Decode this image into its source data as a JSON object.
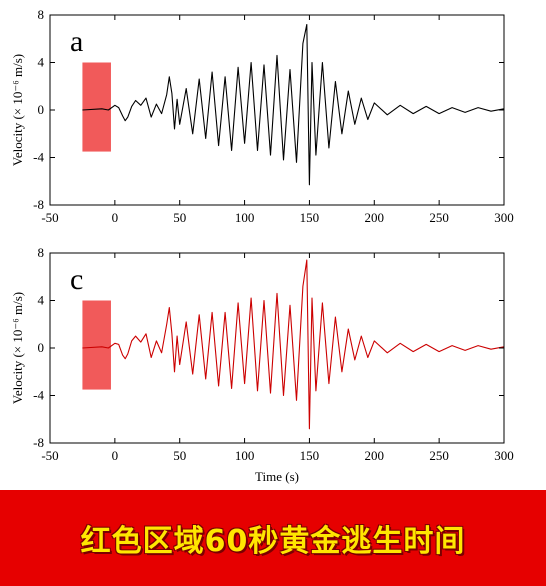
{
  "chart_data": [
    {
      "type": "line",
      "panel_label": "a",
      "xlabel": "",
      "ylabel": "Velocity (× 10⁻⁶ m/s)",
      "xlim": [
        -50,
        300
      ],
      "ylim": [
        -8,
        8
      ],
      "xticks": [
        -50,
        0,
        50,
        100,
        150,
        200,
        250,
        300
      ],
      "yticks": [
        -8,
        -4,
        0,
        4,
        8
      ],
      "line_color": "#000000",
      "highlight": {
        "x0": -25,
        "x1": -3,
        "y0": -3.5,
        "y1": 4,
        "color": "#f04848"
      },
      "series": [
        {
          "x": [
            -25,
            -10,
            -5,
            0,
            3,
            6,
            8,
            10,
            13,
            16,
            20,
            24,
            28,
            32,
            36,
            40,
            42,
            44,
            46,
            48,
            50,
            55,
            60,
            65,
            70,
            75,
            80,
            85,
            90,
            95,
            100,
            105,
            110,
            115,
            120,
            125,
            130,
            135,
            140,
            145,
            148,
            150,
            152,
            155,
            160,
            165,
            170,
            175,
            180,
            185,
            190,
            195,
            200,
            210,
            220,
            230,
            240,
            250,
            260,
            270,
            280,
            290,
            300
          ],
          "y": [
            0,
            0.1,
            0,
            0.4,
            0.2,
            -0.5,
            -0.9,
            -0.6,
            0.3,
            0.8,
            0.4,
            1.0,
            -0.6,
            0.5,
            -0.3,
            1.3,
            2.8,
            1.4,
            -1.6,
            0.9,
            -1.2,
            1.8,
            -2.0,
            2.6,
            -2.4,
            3.2,
            -3.0,
            2.8,
            -3.4,
            3.6,
            -2.8,
            4.0,
            -3.4,
            3.8,
            -3.8,
            4.6,
            -4.2,
            3.4,
            -4.4,
            5.6,
            7.2,
            -6.3,
            4.0,
            -3.8,
            4.0,
            -3.2,
            2.4,
            -2.0,
            1.6,
            -1.2,
            1.0,
            -0.8,
            0.6,
            -0.4,
            0.4,
            -0.3,
            0.3,
            -0.3,
            0.2,
            -0.2,
            0.2,
            -0.1,
            0.1
          ]
        }
      ]
    },
    {
      "type": "line",
      "panel_label": "c",
      "xlabel": "Time (s)",
      "ylabel": "Velocity (× 10⁻⁶ m/s)",
      "xlim": [
        -50,
        300
      ],
      "ylim": [
        -8,
        8
      ],
      "xticks": [
        -50,
        0,
        50,
        100,
        150,
        200,
        250,
        300
      ],
      "yticks": [
        -8,
        -4,
        0,
        4,
        8
      ],
      "line_color": "#cc0000",
      "highlight": {
        "x0": -25,
        "x1": -3,
        "y0": -3.5,
        "y1": 4,
        "color": "#f04848"
      },
      "series": [
        {
          "x": [
            -25,
            -10,
            -5,
            0,
            3,
            6,
            8,
            10,
            13,
            16,
            20,
            24,
            28,
            32,
            36,
            40,
            42,
            44,
            46,
            48,
            50,
            55,
            60,
            65,
            70,
            75,
            80,
            85,
            90,
            95,
            100,
            105,
            110,
            115,
            120,
            125,
            130,
            135,
            140,
            145,
            148,
            150,
            152,
            155,
            160,
            165,
            170,
            175,
            180,
            185,
            190,
            195,
            200,
            210,
            220,
            230,
            240,
            250,
            260,
            270,
            280,
            290,
            300
          ],
          "y": [
            0,
            0.1,
            0,
            0.4,
            0.3,
            -0.6,
            -0.9,
            -0.5,
            0.6,
            1.0,
            0.5,
            1.2,
            -0.8,
            0.6,
            -0.4,
            2.0,
            3.4,
            1.2,
            -2.0,
            1.0,
            -1.4,
            2.2,
            -2.2,
            2.8,
            -2.6,
            3.0,
            -3.2,
            3.0,
            -3.4,
            3.8,
            -3.0,
            4.2,
            -3.6,
            4.0,
            -3.8,
            4.6,
            -4.0,
            3.6,
            -4.4,
            5.2,
            7.4,
            -6.8,
            4.2,
            -3.6,
            3.8,
            -3.0,
            2.6,
            -2.0,
            1.6,
            -1.0,
            1.0,
            -0.8,
            0.6,
            -0.4,
            0.4,
            -0.3,
            0.3,
            -0.3,
            0.2,
            -0.2,
            0.2,
            -0.1,
            0.1
          ]
        }
      ]
    }
  ],
  "banner": {
    "text": "红色区域60秒黄金逃生时间",
    "background": "#e60000",
    "text_color": "#ffe600"
  }
}
